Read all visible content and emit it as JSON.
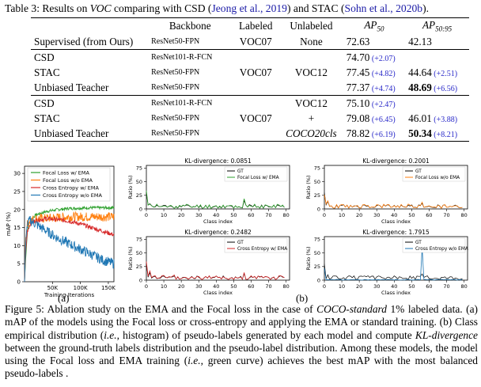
{
  "table": {
    "caption_prefix": "Table 3:  Results on ",
    "caption_voc": "VOC",
    "caption_mid": " comparing with CSD (",
    "cite1": "Jeong et al., 2019",
    "caption_and": ") and STAC (",
    "cite2": "Sohn et al., 2020b",
    "caption_end": ").",
    "headers": [
      "Backbone",
      "Labeled",
      "Unlabeled",
      "AP",
      "50",
      "AP",
      "50:95"
    ],
    "rows": [
      {
        "method": "Supervised (from Ours)",
        "backbone": "ResNet50-FPN",
        "labeled": "VOC07",
        "unlabeled": "None",
        "ap50": "72.63",
        "ap50_imp": "",
        "ap5095": "42.13",
        "ap5095_imp": ""
      },
      {
        "method": "CSD",
        "backbone": "ResNet101-R-FCN",
        "labeled": "",
        "unlabeled": "",
        "ap50": "74.70",
        "ap50_imp": "(+2.07)",
        "ap5095": "-",
        "ap5095_imp": ""
      },
      {
        "method": "STAC",
        "backbone": "ResNet50-FPN",
        "labeled": "VOC07",
        "unlabeled": "VOC12",
        "ap50": "77.45",
        "ap50_imp": "(+4.82)",
        "ap5095": "44.64",
        "ap5095_imp": "(+2.51)"
      },
      {
        "method": "Unbiased Teacher",
        "backbone": "ResNet50-FPN",
        "labeled": "",
        "unlabeled": "",
        "ap50": "77.37",
        "ap50_imp": "(+4.74)",
        "ap5095": "48.69",
        "ap5095_imp": "(+6.56)"
      },
      {
        "method": "CSD",
        "backbone": "ResNet101-R-FCN",
        "labeled": "",
        "unlabeled": "VOC12",
        "ap50": "75.10",
        "ap50_imp": "(+2.47)",
        "ap5095": "-",
        "ap5095_imp": ""
      },
      {
        "method": "STAC",
        "backbone": "ResNet50-FPN",
        "labeled": "VOC07",
        "unlabeled": "+",
        "ap50": "79.08",
        "ap50_imp": "(+6.45)",
        "ap5095": "46.01",
        "ap5095_imp": "(+3.88)"
      },
      {
        "method": "Unbiased Teacher",
        "backbone": "ResNet50-FPN",
        "labeled": "",
        "unlabeled": "COCO20cls",
        "ap50": "78.82",
        "ap50_imp": "(+6.19)",
        "ap5095": "50.34",
        "ap5095_imp": "(+8.21)"
      }
    ]
  },
  "colors": {
    "green": "#2ca02c",
    "orange": "#ff7f0e",
    "red": "#d62728",
    "blue": "#1f77b4",
    "black": "#000000"
  },
  "chart_data": [
    {
      "type": "line",
      "id": "a",
      "xlabel": "Training Iterations",
      "ylabel": "mAP (%)",
      "xticks": [
        "50K",
        "100K",
        "150K"
      ],
      "yticks": [
        "0",
        "5",
        "10",
        "15",
        "20",
        "25",
        "30"
      ],
      "xlim": [
        0,
        160000
      ],
      "ylim": [
        0,
        32
      ],
      "series": [
        {
          "name": "Focal Loss w/ EMA",
          "color": "#2ca02c",
          "x": [
            0,
            2000,
            5000,
            10000,
            20000,
            40000,
            60000,
            80000,
            100000,
            120000,
            140000,
            160000
          ],
          "y": [
            0,
            6,
            14,
            17,
            18.5,
            19.5,
            20,
            20.3,
            20.4,
            20.5,
            20.5,
            20.5
          ]
        },
        {
          "name": "Focal Loss w/o EMA",
          "color": "#ff7f0e",
          "x": [
            0,
            2000,
            5000,
            10000,
            20000,
            40000,
            60000,
            80000,
            100000,
            120000,
            140000,
            160000
          ],
          "y": [
            0,
            12,
            16,
            17,
            17.5,
            17.6,
            17.8,
            18,
            18,
            18,
            18,
            18
          ]
        },
        {
          "name": "Cross Entropy w/ EMA",
          "color": "#d62728",
          "x": [
            0,
            2000,
            5000,
            10000,
            20000,
            40000,
            60000,
            80000,
            100000,
            120000,
            140000,
            160000
          ],
          "y": [
            0,
            8,
            14,
            16,
            17,
            17.5,
            17.2,
            16.8,
            16,
            15,
            14,
            13
          ]
        },
        {
          "name": "Cross Entropy w/o EMA",
          "color": "#1f77b4",
          "x": [
            0,
            2000,
            5000,
            10000,
            20000,
            40000,
            60000,
            80000,
            100000,
            120000,
            140000,
            160000
          ],
          "y": [
            0,
            10,
            16,
            17,
            16,
            14,
            12,
            10.5,
            9,
            7.5,
            6,
            5
          ]
        }
      ],
      "legend_position": "top-right"
    },
    {
      "type": "line",
      "id": "b1",
      "title": "KL-divergence: 0.0851",
      "xlabel": "Class index",
      "ylabel": "Ratio (%)",
      "xticks": [
        "0",
        "10",
        "20",
        "30",
        "40",
        "50",
        "60",
        "70",
        "80"
      ],
      "yticks": [
        "0",
        "25",
        "50",
        "75"
      ],
      "series": [
        {
          "name": "GT",
          "color": "#000000"
        },
        {
          "name": "Focal Loss w/ EMA",
          "color": "#2ca02c"
        }
      ]
    },
    {
      "type": "line",
      "id": "b2",
      "title": "KL-divergence: 0.2001",
      "xlabel": "Class index",
      "ylabel": "Ratio (%)",
      "xticks": [
        "0",
        "10",
        "20",
        "30",
        "40",
        "50",
        "60",
        "70",
        "80"
      ],
      "yticks": [
        "0",
        "25",
        "50",
        "75"
      ],
      "series": [
        {
          "name": "GT",
          "color": "#000000"
        },
        {
          "name": "Focal Loss w/o EMA",
          "color": "#ff7f0e"
        }
      ]
    },
    {
      "type": "line",
      "id": "b3",
      "title": "KL-divergence: 0.2482",
      "xlabel": "Class index",
      "ylabel": "Ratio (%)",
      "xticks": [
        "0",
        "10",
        "20",
        "30",
        "40",
        "50",
        "60",
        "70",
        "80"
      ],
      "yticks": [
        "0",
        "25",
        "50",
        "75"
      ],
      "series": [
        {
          "name": "GT",
          "color": "#000000"
        },
        {
          "name": "Cross Entropy w/ EMA",
          "color": "#d62728"
        }
      ]
    },
    {
      "type": "line",
      "id": "b4",
      "title": "KL-divergence: 1.7915",
      "xlabel": "Class index",
      "ylabel": "Ratio (%)",
      "xticks": [
        "0",
        "10",
        "20",
        "30",
        "40",
        "50",
        "60",
        "70",
        "80"
      ],
      "yticks": [
        "0",
        "25",
        "50",
        "75"
      ],
      "series": [
        {
          "name": "GT",
          "color": "#000000"
        },
        {
          "name": "Cross Entropy w/o EMA",
          "color": "#1f77b4"
        }
      ]
    }
  ],
  "sublabels": {
    "a": "(a)",
    "b": "(b)"
  },
  "figure_caption": "Figure 5: Ablation study on the EMA and the Focal loss in the case of COCO-standard 1% labeled data. (a) mAP of the models using the Focal loss or cross-entropy and applying the EMA or standard training. (b) Class empirical distribution (i.e., histogram) of pseudo-labels generated by each model and compute KL-divergence between the ground-truth labels distribution and the pseudo-label distribution. Among these models, the model using the Focal loss and EMA training (i.e., green curve) achieves the best mAP with the most balanced pseudo-labels ."
}
